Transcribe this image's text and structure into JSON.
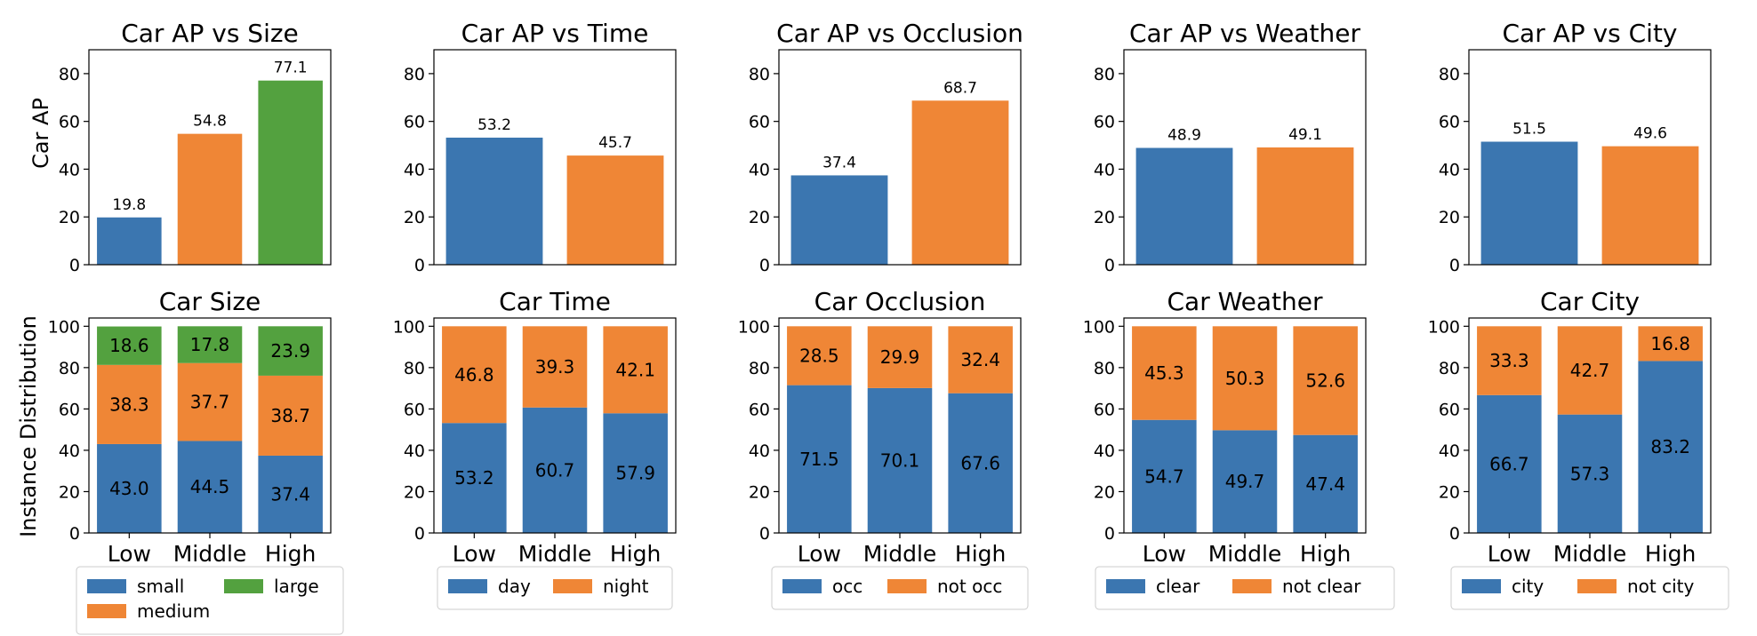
{
  "colors": {
    "blue": "#3b76b0",
    "orange": "#ef8636",
    "green": "#53a13f"
  },
  "y_labels": {
    "top": "Car AP",
    "bottom": "Instance Distribution"
  },
  "chart_data": [
    {
      "type": "bar",
      "title": "Car AP vs Size",
      "categories": [
        "small",
        "medium",
        "large"
      ],
      "values": [
        19.8,
        54.8,
        77.1
      ],
      "colors": [
        "#3b76b0",
        "#ef8636",
        "#53a13f"
      ],
      "ylabel": "Car AP",
      "ylim": [
        0,
        90
      ],
      "yticks": [
        0,
        20,
        40,
        60,
        80
      ],
      "show_xticks": false,
      "grid": false
    },
    {
      "type": "bar",
      "title": "Car AP vs Time",
      "categories": [
        "day",
        "night"
      ],
      "values": [
        53.2,
        45.7
      ],
      "colors": [
        "#3b76b0",
        "#ef8636"
      ],
      "ylim": [
        0,
        90
      ],
      "yticks": [
        0,
        20,
        40,
        60,
        80
      ],
      "show_xticks": false,
      "grid": false
    },
    {
      "type": "bar",
      "title": "Car AP vs Occlusion",
      "categories": [
        "occ",
        "not occ"
      ],
      "values": [
        37.4,
        68.7
      ],
      "colors": [
        "#3b76b0",
        "#ef8636"
      ],
      "ylim": [
        0,
        90
      ],
      "yticks": [
        0,
        20,
        40,
        60,
        80
      ],
      "show_xticks": false,
      "grid": false
    },
    {
      "type": "bar",
      "title": "Car AP vs Weather",
      "categories": [
        "clear",
        "not clear"
      ],
      "values": [
        48.9,
        49.1
      ],
      "colors": [
        "#3b76b0",
        "#ef8636"
      ],
      "ylim": [
        0,
        90
      ],
      "yticks": [
        0,
        20,
        40,
        60,
        80
      ],
      "show_xticks": false,
      "grid": false
    },
    {
      "type": "bar",
      "title": "Car AP vs City",
      "categories": [
        "city",
        "not city"
      ],
      "values": [
        51.5,
        49.6
      ],
      "colors": [
        "#3b76b0",
        "#ef8636"
      ],
      "ylim": [
        0,
        90
      ],
      "yticks": [
        0,
        20,
        40,
        60,
        80
      ],
      "show_xticks": false,
      "grid": false
    },
    {
      "type": "stacked_bar",
      "title": "Car Size",
      "categories": [
        "Low",
        "Middle",
        "High"
      ],
      "series": [
        {
          "name": "small",
          "values": [
            43.0,
            44.5,
            37.4
          ],
          "color": "#3b76b0"
        },
        {
          "name": "medium",
          "values": [
            38.3,
            37.7,
            38.7
          ],
          "color": "#ef8636"
        },
        {
          "name": "large",
          "values": [
            18.6,
            17.8,
            23.9
          ],
          "color": "#53a13f"
        }
      ],
      "ylabel": "Instance Distribution",
      "ylim": [
        0,
        104
      ],
      "yticks": [
        0,
        20,
        40,
        60,
        80,
        100
      ],
      "legend": "below",
      "legend_cols": 2,
      "grid": false
    },
    {
      "type": "stacked_bar",
      "title": "Car Time",
      "categories": [
        "Low",
        "Middle",
        "High"
      ],
      "series": [
        {
          "name": "day",
          "values": [
            53.2,
            60.7,
            57.9
          ],
          "color": "#3b76b0"
        },
        {
          "name": "night",
          "values": [
            46.8,
            39.3,
            42.1
          ],
          "color": "#ef8636"
        }
      ],
      "ylim": [
        0,
        104
      ],
      "yticks": [
        0,
        20,
        40,
        60,
        80,
        100
      ],
      "legend": "below",
      "legend_cols": 2,
      "grid": false
    },
    {
      "type": "stacked_bar",
      "title": "Car Occlusion",
      "categories": [
        "Low",
        "Middle",
        "High"
      ],
      "series": [
        {
          "name": "occ",
          "values": [
            71.5,
            70.1,
            67.6
          ],
          "color": "#3b76b0"
        },
        {
          "name": "not occ",
          "values": [
            28.5,
            29.9,
            32.4
          ],
          "color": "#ef8636"
        }
      ],
      "ylim": [
        0,
        104
      ],
      "yticks": [
        0,
        20,
        40,
        60,
        80,
        100
      ],
      "legend": "below",
      "legend_cols": 2,
      "grid": false
    },
    {
      "type": "stacked_bar",
      "title": "Car Weather",
      "categories": [
        "Low",
        "Middle",
        "High"
      ],
      "series": [
        {
          "name": "clear",
          "values": [
            54.7,
            49.7,
            47.4
          ],
          "color": "#3b76b0"
        },
        {
          "name": "not clear",
          "values": [
            45.3,
            50.3,
            52.6
          ],
          "color": "#ef8636"
        }
      ],
      "ylim": [
        0,
        104
      ],
      "yticks": [
        0,
        20,
        40,
        60,
        80,
        100
      ],
      "legend": "below",
      "legend_cols": 2,
      "grid": false
    },
    {
      "type": "stacked_bar",
      "title": "Car City",
      "categories": [
        "Low",
        "Middle",
        "High"
      ],
      "series": [
        {
          "name": "city",
          "values": [
            66.7,
            57.3,
            83.2
          ],
          "color": "#3b76b0"
        },
        {
          "name": "not city",
          "values": [
            33.3,
            42.7,
            16.8
          ],
          "color": "#ef8636"
        }
      ],
      "ylim": [
        0,
        104
      ],
      "yticks": [
        0,
        20,
        40,
        60,
        80,
        100
      ],
      "legend": "below",
      "legend_cols": 2,
      "grid": false
    }
  ]
}
